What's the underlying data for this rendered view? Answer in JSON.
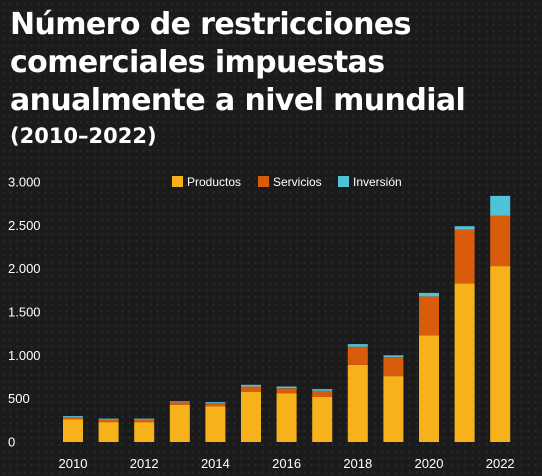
{
  "chart_data": {
    "type": "bar",
    "stacked": true,
    "title": "Número de restricciones comerciales impuestas anualmente a nivel mundial",
    "subtitle": "(2010–2022)",
    "xlabel": "",
    "ylabel": "",
    "categories": [
      "2010",
      "2011",
      "2012",
      "2013",
      "2014",
      "2015",
      "2016",
      "2017",
      "2018",
      "2019",
      "2020",
      "2021",
      "2022"
    ],
    "x_tick_labels": [
      "2010",
      "",
      "2012",
      "",
      "2014",
      "",
      "2016",
      "",
      "2018",
      "",
      "2020",
      "",
      "2022"
    ],
    "y_ticks": [
      0,
      500,
      1000,
      1500,
      2000,
      2500,
      3000
    ],
    "y_tick_labels": [
      "0",
      "500",
      "1.000",
      "1.500",
      "2.000",
      "2.500",
      "3.000"
    ],
    "ylim": [
      0,
      3000
    ],
    "grid": false,
    "legend_position": "top",
    "series": [
      {
        "name": "Productos",
        "color": "#f7b21b",
        "values": [
          260,
          230,
          230,
          430,
          410,
          580,
          560,
          520,
          890,
          760,
          1230,
          1830,
          2030
        ]
      },
      {
        "name": "Servicios",
        "color": "#d85c0c",
        "values": [
          30,
          30,
          30,
          30,
          40,
          60,
          60,
          70,
          210,
          220,
          450,
          620,
          580
        ]
      },
      {
        "name": "Inversión",
        "color": "#4ec3d8",
        "values": [
          10,
          10,
          10,
          10,
          10,
          20,
          20,
          20,
          30,
          20,
          40,
          40,
          230
        ]
      }
    ]
  }
}
